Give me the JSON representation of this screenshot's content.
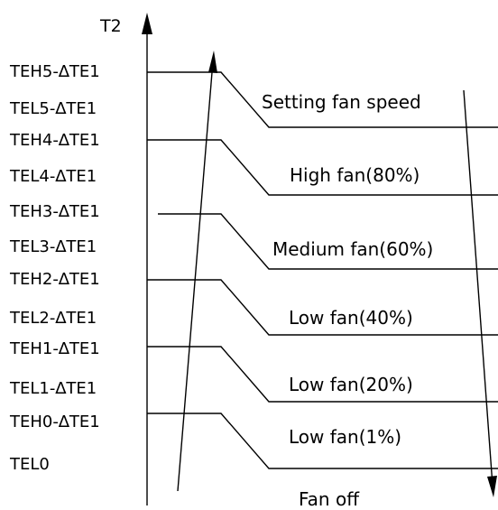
{
  "diagram": {
    "axis_label": "T2",
    "y_labels": [
      "TEH5-∆TE1",
      "TEL5-∆TE1",
      "TEH4-∆TE1",
      "TEL4-∆TE1",
      "TEH3-∆TE1",
      "TEL3-∆TE1",
      "TEH2-∆TE1",
      "TEL2-∆TE1",
      "TEH1-∆TE1",
      "TEL1-∆TE1",
      "TEH0-∆TE1",
      "TEL0"
    ],
    "zones": [
      "Setting fan speed",
      "High fan(80%)",
      "Medium fan(60%)",
      "Low fan(40%)",
      "Low fan(20%)",
      "Low fan(1%)",
      "Fan off"
    ]
  }
}
